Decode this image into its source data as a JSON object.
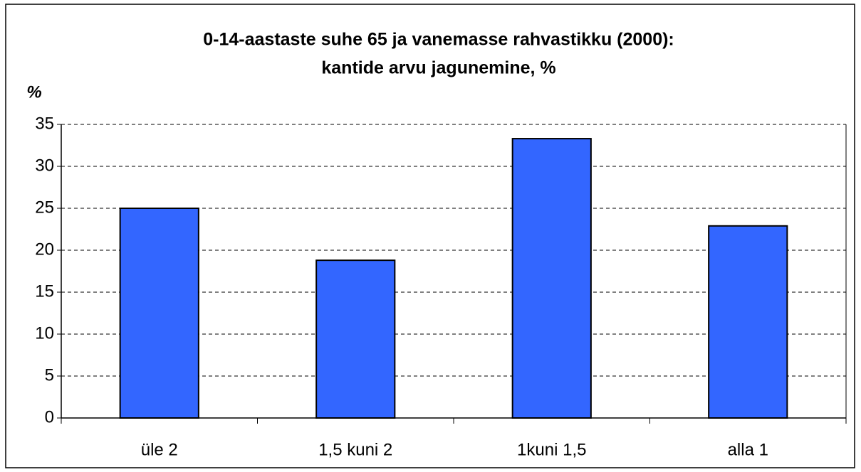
{
  "chart_data": {
    "type": "bar",
    "title": [
      "0-14-aastaste suhe 65 ja vanemasse rahvastikku (2000):",
      "kantide arvu jagunemine, %"
    ],
    "y_label": "%",
    "categories": [
      "üle 2",
      "1,5 kuni 2",
      "1kuni 1,5",
      "alla 1"
    ],
    "values": [
      25,
      18.8,
      33.3,
      22.9
    ],
    "color": "#3366ff",
    "ylim": [
      0,
      35
    ],
    "yticks": [
      0,
      5,
      10,
      15,
      20,
      25,
      30,
      35
    ],
    "grid": true
  }
}
